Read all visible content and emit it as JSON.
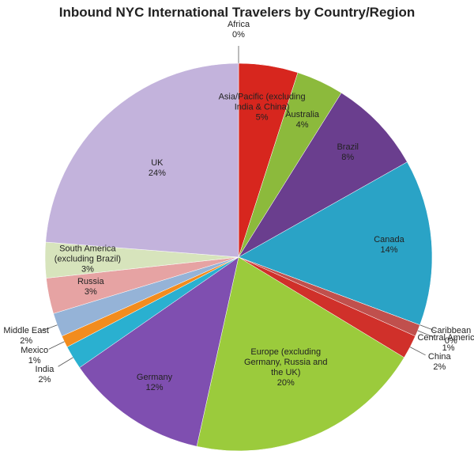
{
  "chart_data": {
    "type": "pie",
    "title": "Inbound NYC International Travelers by Country/Region",
    "categories": [
      "Africa",
      "Asia/Pacific (excluding India & China)",
      "Australia",
      "Brazil",
      "Canada",
      "Caribbean",
      "Central America",
      "China",
      "Europe (excluding Germany, Russia and the UK)",
      "Germany",
      "India",
      "Mexico",
      "Middle East",
      "Russia",
      "South America (excluding Brazil)",
      "UK"
    ],
    "values": [
      0,
      5,
      4,
      8,
      14,
      0,
      1,
      2,
      20,
      12,
      2,
      1,
      2,
      3,
      3,
      24
    ],
    "value_labels": [
      "0%",
      "5%",
      "4%",
      "8%",
      "14%",
      "0%",
      "1%",
      "2%",
      "20%",
      "12%",
      "2%",
      "1%",
      "2%",
      "3%",
      "3%",
      "24%"
    ],
    "colors": [
      "#1f3a6e",
      "#d7261e",
      "#8cba3c",
      "#6a3e8e",
      "#2aa3c6",
      "#4f81bd",
      "#c0504d",
      "#d0302a",
      "#9bcb3c",
      "#7f4fb0",
      "#2ab0d0",
      "#f28c1e",
      "#95b3d7",
      "#e6a3a3",
      "#d7e4bc",
      "#c3b3dc"
    ]
  }
}
